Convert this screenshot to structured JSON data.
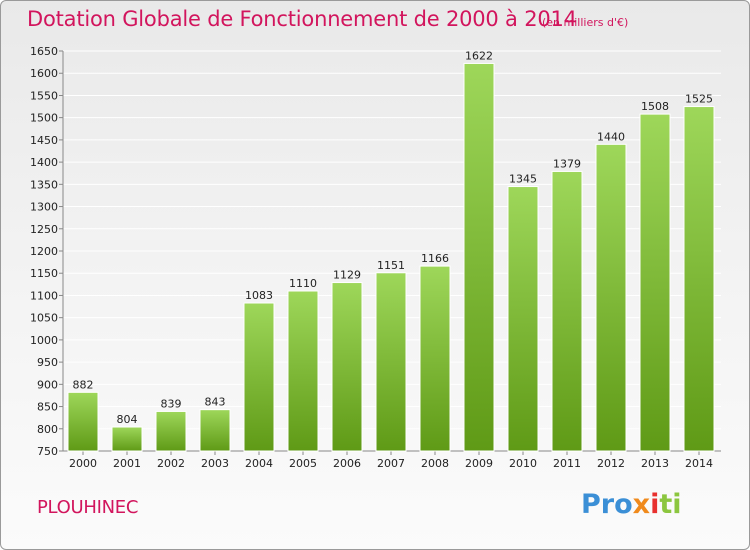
{
  "title": "Dotation Globale de Fonctionnement de 2000 à 2014",
  "unit": "(en milliers d'€)",
  "commune": "PLOUHINEC",
  "logo": {
    "brand": "Proxiti",
    "letters": [
      "Pro",
      "x",
      "i",
      "ti"
    ]
  },
  "colors": {
    "accent": "#d2155d",
    "bar_top": "#9ed75a",
    "bar_bottom": "#5f9a16",
    "grid": "#ffffff",
    "axis": "#888888"
  },
  "chart_data": {
    "type": "bar",
    "title": "Dotation Globale de Fonctionnement de 2000 à 2014",
    "subtitle": "(en milliers d'€)",
    "xlabel": "",
    "ylabel": "",
    "categories": [
      "2000",
      "2001",
      "2002",
      "2003",
      "2004",
      "2005",
      "2006",
      "2007",
      "2008",
      "2009",
      "2010",
      "2011",
      "2012",
      "2013",
      "2014"
    ],
    "values": [
      882,
      804,
      839,
      843,
      1083,
      1110,
      1129,
      1151,
      1166,
      1622,
      1345,
      1379,
      1440,
      1508,
      1525
    ],
    "ylim": [
      750,
      1650
    ],
    "yticks": [
      750,
      800,
      850,
      900,
      950,
      1000,
      1050,
      1100,
      1150,
      1200,
      1250,
      1300,
      1350,
      1400,
      1450,
      1500,
      1550,
      1600,
      1650
    ],
    "grid": true,
    "legend": "none"
  }
}
